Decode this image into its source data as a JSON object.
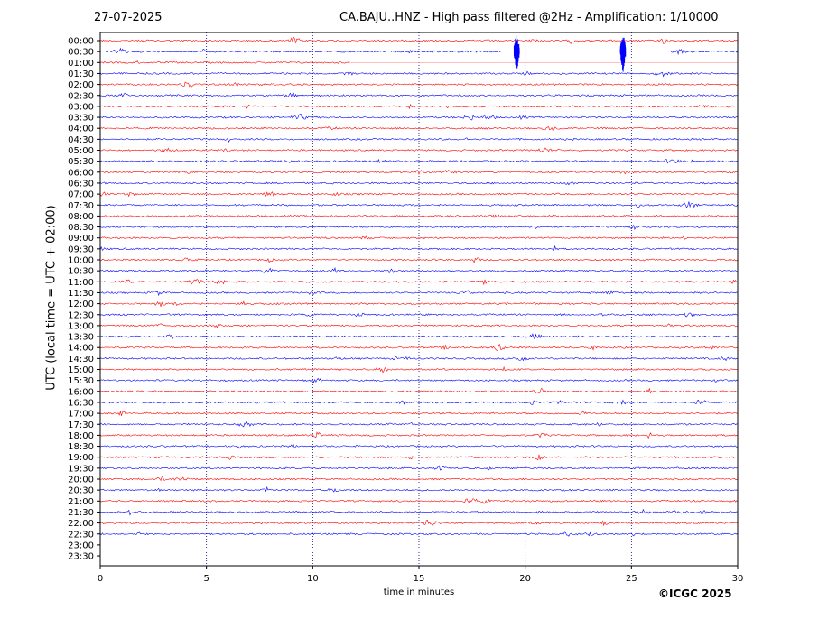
{
  "header": {
    "date": "27-07-2025",
    "title": "CA.BAJU..HNZ - High pass filtered @2Hz - Amplification: 1/10000"
  },
  "footer": {
    "copyright": "©ICGC 2025"
  },
  "chart_data": {
    "type": "line",
    "title": "CA.BAJU..HNZ - High pass filtered @2Hz - Amplification: 1/10000",
    "xlabel": "time in minutes",
    "ylabel": "UTC (local time = UTC + 02:00)",
    "xlim": [
      0,
      30
    ],
    "xticks": [
      0,
      5,
      10,
      15,
      20,
      25,
      30
    ],
    "grid": "vertical dotted lines at 5-minute ticks",
    "rows": [
      "00:00",
      "00:30",
      "01:00",
      "01:30",
      "02:00",
      "02:30",
      "03:00",
      "03:30",
      "04:00",
      "04:30",
      "05:00",
      "05:30",
      "06:00",
      "06:30",
      "07:00",
      "07:30",
      "08:00",
      "08:30",
      "09:00",
      "09:30",
      "10:00",
      "10:30",
      "11:00",
      "11:30",
      "12:00",
      "12:30",
      "13:00",
      "13:30",
      "14:00",
      "14:30",
      "15:00",
      "15:30",
      "16:00",
      "16:30",
      "17:00",
      "17:30",
      "18:00",
      "18:30",
      "19:00",
      "19:30",
      "20:00",
      "20:30",
      "21:00",
      "21:30",
      "22:00",
      "22:30",
      "23:00",
      "23:30"
    ],
    "trace_colors": [
      "#ff0000",
      "#0000ff"
    ],
    "events": [
      {
        "row": "00:30",
        "minute": 19.6,
        "amplitude": "large"
      },
      {
        "row": "00:30",
        "minute": 24.6,
        "amplitude": "large"
      }
    ],
    "data_gaps": [
      {
        "row": "00:30",
        "from_minute": 18.9,
        "to_minute": 26.8
      },
      {
        "row": "01:00",
        "from_minute": 11.8,
        "to_minute": 30
      },
      {
        "row": "23:00",
        "from_minute": 0,
        "to_minute": 30
      },
      {
        "row": "23:30",
        "from_minute": 0,
        "to_minute": 30
      }
    ]
  }
}
